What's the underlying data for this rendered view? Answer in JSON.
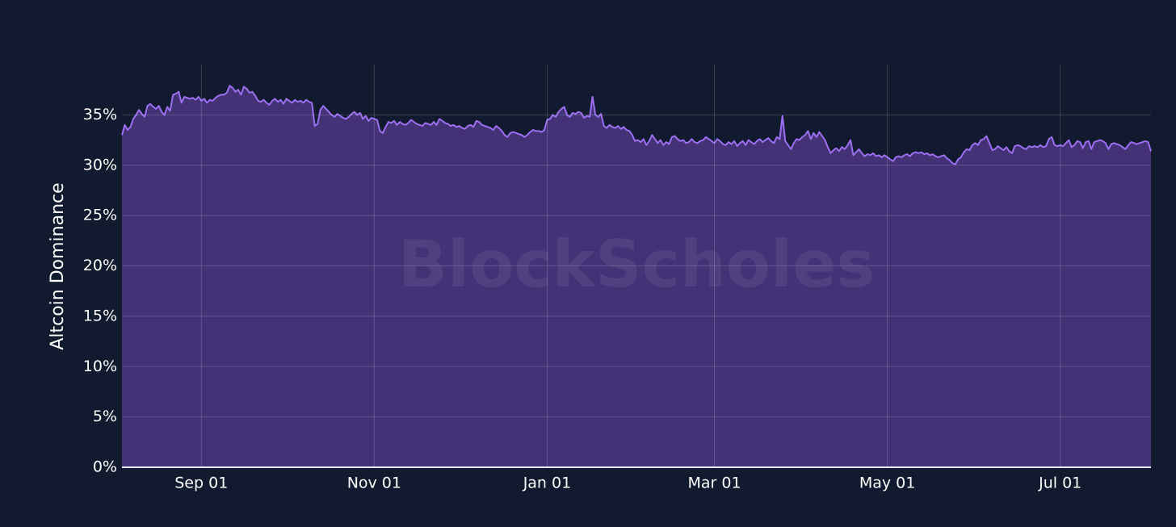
{
  "chart_data": {
    "type": "area",
    "ylabel": "Altcoin Dominance",
    "watermark": "BlockScholes",
    "color": "#9d6ff2",
    "fill_color": "#47347a",
    "ylim": [
      0,
      40
    ],
    "yticks": [
      {
        "value": 0,
        "label": "0%"
      },
      {
        "value": 5,
        "label": "5%"
      },
      {
        "value": 10,
        "label": "10%"
      },
      {
        "value": 15,
        "label": "15%"
      },
      {
        "value": 20,
        "label": "20%"
      },
      {
        "value": 25,
        "label": "25%"
      },
      {
        "value": 30,
        "label": "30%"
      },
      {
        "value": 35,
        "label": "35%"
      }
    ],
    "xticks": [
      "Sep 01",
      "Nov 01",
      "Jan 01",
      "Mar 01",
      "May 01",
      "Jul 01"
    ],
    "grid": true,
    "x": [
      "Aug 04",
      "Aug 05",
      "Aug 06",
      "Aug 07",
      "Aug 08",
      "Aug 09",
      "Aug 10",
      "Aug 11",
      "Aug 12",
      "Aug 13",
      "Aug 14",
      "Aug 15",
      "Aug 16",
      "Aug 17",
      "Aug 18",
      "Aug 19",
      "Aug 20",
      "Aug 21",
      "Aug 22",
      "Aug 23",
      "Aug 24",
      "Aug 25",
      "Aug 26",
      "Aug 27",
      "Aug 28",
      "Aug 29",
      "Aug 30",
      "Aug 31",
      "Sep 01",
      "Sep 02",
      "Sep 03",
      "Sep 04",
      "Sep 05",
      "Sep 06",
      "Sep 07",
      "Sep 08",
      "Sep 09",
      "Sep 10",
      "Sep 11",
      "Sep 12",
      "Sep 13",
      "Sep 14",
      "Sep 15",
      "Sep 16",
      "Sep 17",
      "Sep 18",
      "Sep 19",
      "Sep 20",
      "Sep 21",
      "Sep 22",
      "Sep 23",
      "Sep 24",
      "Sep 25",
      "Sep 26",
      "Sep 27",
      "Sep 28",
      "Sep 29",
      "Sep 30",
      "Oct 01",
      "Oct 02",
      "Oct 03",
      "Oct 04",
      "Oct 05",
      "Oct 06",
      "Oct 07",
      "Oct 08",
      "Oct 09",
      "Oct 10",
      "Oct 11",
      "Oct 12",
      "Oct 13",
      "Oct 14",
      "Oct 15",
      "Oct 16",
      "Oct 17",
      "Oct 18",
      "Oct 19",
      "Oct 20",
      "Oct 21",
      "Oct 22",
      "Oct 23",
      "Oct 24",
      "Oct 25",
      "Oct 26",
      "Oct 27",
      "Oct 28",
      "Oct 29",
      "Oct 30",
      "Oct 31",
      "Nov 01",
      "Nov 02",
      "Nov 03",
      "Nov 04",
      "Nov 05",
      "Nov 06",
      "Nov 07",
      "Nov 08",
      "Nov 09",
      "Nov 10",
      "Nov 11",
      "Nov 12",
      "Nov 13",
      "Nov 14",
      "Nov 15",
      "Nov 16",
      "Nov 17",
      "Nov 18",
      "Nov 19",
      "Nov 20",
      "Nov 21",
      "Nov 22",
      "Nov 23",
      "Nov 24",
      "Nov 25",
      "Nov 26",
      "Nov 27",
      "Nov 28",
      "Nov 29",
      "Nov 30",
      "Dec 01",
      "Dec 02",
      "Dec 03",
      "Dec 04",
      "Dec 05",
      "Dec 06",
      "Dec 07",
      "Dec 08",
      "Dec 09",
      "Dec 10",
      "Dec 11",
      "Dec 12",
      "Dec 13",
      "Dec 14",
      "Dec 15",
      "Dec 16",
      "Dec 17",
      "Dec 18",
      "Dec 19",
      "Dec 20",
      "Dec 21",
      "Dec 22",
      "Dec 23",
      "Dec 24",
      "Dec 25",
      "Dec 26",
      "Dec 27",
      "Dec 28",
      "Dec 29",
      "Dec 30",
      "Dec 31",
      "Jan 01",
      "Jan 02",
      "Jan 03",
      "Jan 04",
      "Jan 05",
      "Jan 06",
      "Jan 07",
      "Jan 08",
      "Jan 09",
      "Jan 10",
      "Jan 11",
      "Jan 12",
      "Jan 13",
      "Jan 14",
      "Jan 15",
      "Jan 16",
      "Jan 17",
      "Jan 18",
      "Jan 19",
      "Jan 20",
      "Jan 21",
      "Jan 22",
      "Jan 23",
      "Jan 24",
      "Jan 25",
      "Jan 26",
      "Jan 27",
      "Jan 28",
      "Jan 29",
      "Jan 30",
      "Jan 31",
      "Feb 01",
      "Feb 02",
      "Feb 03",
      "Feb 04",
      "Feb 05",
      "Feb 06",
      "Feb 07",
      "Feb 08",
      "Feb 09",
      "Feb 10",
      "Feb 11",
      "Feb 12",
      "Feb 13",
      "Feb 14",
      "Feb 15",
      "Feb 16",
      "Feb 17",
      "Feb 18",
      "Feb 19",
      "Feb 20",
      "Feb 21",
      "Feb 22",
      "Feb 23",
      "Feb 24",
      "Feb 25",
      "Feb 26",
      "Feb 27",
      "Feb 28",
      "Mar 01",
      "Mar 02",
      "Mar 03",
      "Mar 04",
      "Mar 05",
      "Mar 06",
      "Mar 07",
      "Mar 08",
      "Mar 09",
      "Mar 10",
      "Mar 11",
      "Mar 12",
      "Mar 13",
      "Mar 14",
      "Mar 15",
      "Mar 16",
      "Mar 17",
      "Mar 18",
      "Mar 19",
      "Mar 20",
      "Mar 21",
      "Mar 22",
      "Mar 23",
      "Mar 24",
      "Mar 25",
      "Mar 26",
      "Mar 27",
      "Mar 28",
      "Mar 29",
      "Mar 30",
      "Mar 31",
      "Apr 01",
      "Apr 02",
      "Apr 03",
      "Apr 04",
      "Apr 05",
      "Apr 06",
      "Apr 07",
      "Apr 08",
      "Apr 09",
      "Apr 10",
      "Apr 11",
      "Apr 12",
      "Apr 13",
      "Apr 14",
      "Apr 15",
      "Apr 16",
      "Apr 17",
      "Apr 18",
      "Apr 19",
      "Apr 20",
      "Apr 21",
      "Apr 22",
      "Apr 23",
      "Apr 24",
      "Apr 25",
      "Apr 26",
      "Apr 27",
      "Apr 28",
      "Apr 29",
      "Apr 30",
      "May 01",
      "May 02",
      "May 03",
      "May 04",
      "May 05",
      "May 06",
      "May 07",
      "May 08",
      "May 09",
      "May 10",
      "May 11",
      "May 12",
      "May 13",
      "May 14",
      "May 15",
      "May 16",
      "May 17",
      "May 18",
      "May 19",
      "May 20",
      "May 21",
      "May 22",
      "May 23",
      "May 24",
      "May 25",
      "May 26",
      "May 27",
      "May 28",
      "May 29",
      "May 30",
      "May 31",
      "Jun 01",
      "Jun 02",
      "Jun 03",
      "Jun 04",
      "Jun 05",
      "Jun 06",
      "Jun 07",
      "Jun 08",
      "Jun 09",
      "Jun 10",
      "Jun 11",
      "Jun 12",
      "Jun 13",
      "Jun 14",
      "Jun 15",
      "Jun 16",
      "Jun 17",
      "Jun 18",
      "Jun 19",
      "Jun 20",
      "Jun 21",
      "Jun 22",
      "Jun 23",
      "Jun 24",
      "Jun 25",
      "Jun 26",
      "Jun 27",
      "Jun 28",
      "Jun 29",
      "Jun 30",
      "Jul 01",
      "Jul 02",
      "Jul 03",
      "Jul 04",
      "Jul 05",
      "Jul 06",
      "Jul 07",
      "Jul 08",
      "Jul 09",
      "Jul 10",
      "Jul 11",
      "Jul 12",
      "Jul 13",
      "Jul 14",
      "Jul 15",
      "Jul 16",
      "Jul 17",
      "Jul 18",
      "Jul 19",
      "Jul 20",
      "Jul 21",
      "Jul 22",
      "Jul 23",
      "Jul 24",
      "Jul 25",
      "Jul 26",
      "Jul 27",
      "Jul 28",
      "Jul 29",
      "Jul 30",
      "Jul 31",
      "Aug 01",
      "Aug 02"
    ],
    "values": [
      33.0,
      34.0,
      33.5,
      33.8,
      34.6,
      35.0,
      35.5,
      35.1,
      34.8,
      35.9,
      36.1,
      35.8,
      35.6,
      35.9,
      35.3,
      35.0,
      35.8,
      35.4,
      37.0,
      37.1,
      37.3,
      36.2,
      36.8,
      36.7,
      36.6,
      36.7,
      36.5,
      36.8,
      36.4,
      36.6,
      36.2,
      36.5,
      36.4,
      36.7,
      36.9,
      37.0,
      37.0,
      37.2,
      37.9,
      37.7,
      37.3,
      37.5,
      37.0,
      37.8,
      37.6,
      37.2,
      37.3,
      36.9,
      36.4,
      36.3,
      36.5,
      36.2,
      36.0,
      36.4,
      36.6,
      36.3,
      36.5,
      36.1,
      36.6,
      36.4,
      36.2,
      36.5,
      36.3,
      36.4,
      36.2,
      36.5,
      36.3,
      36.2,
      33.9,
      34.1,
      35.5,
      35.9,
      35.6,
      35.3,
      35.0,
      34.8,
      35.1,
      34.9,
      34.7,
      34.6,
      34.8,
      35.1,
      35.3,
      35.0,
      35.2,
      34.6,
      34.9,
      34.4,
      34.7,
      34.6,
      34.5,
      33.4,
      33.2,
      33.8,
      34.3,
      34.2,
      34.4,
      34.0,
      34.3,
      34.1,
      34.0,
      34.2,
      34.5,
      34.3,
      34.1,
      34.0,
      33.9,
      34.2,
      34.1,
      34.0,
      34.3,
      34.0,
      34.6,
      34.4,
      34.2,
      34.1,
      33.9,
      34.0,
      33.8,
      33.9,
      33.7,
      33.6,
      33.9,
      34.0,
      33.8,
      34.4,
      34.3,
      34.0,
      33.9,
      33.8,
      33.7,
      33.5,
      33.9,
      33.7,
      33.4,
      33.0,
      32.8,
      33.2,
      33.3,
      33.2,
      33.1,
      33.0,
      32.8,
      33.0,
      33.3,
      33.5,
      33.4,
      33.4,
      33.3,
      33.5,
      34.5,
      34.6,
      35.0,
      34.8,
      35.3,
      35.6,
      35.8,
      35.0,
      34.8,
      35.2,
      35.1,
      35.3,
      35.2,
      34.7,
      34.9,
      34.8,
      36.8,
      35.0,
      34.8,
      35.1,
      33.9,
      33.7,
      34.0,
      33.8,
      33.7,
      33.9,
      33.6,
      33.8,
      33.5,
      33.4,
      33.0,
      32.4,
      32.5,
      32.3,
      32.6,
      32.0,
      32.4,
      33.0,
      32.6,
      32.2,
      32.5,
      32.0,
      32.3,
      32.1,
      32.8,
      32.9,
      32.6,
      32.4,
      32.5,
      32.2,
      32.3,
      32.6,
      32.3,
      32.2,
      32.4,
      32.5,
      32.8,
      32.6,
      32.4,
      32.2,
      32.6,
      32.4,
      32.1,
      32.0,
      32.3,
      32.1,
      32.4,
      31.9,
      32.2,
      32.4,
      32.0,
      32.5,
      32.3,
      32.1,
      32.4,
      32.6,
      32.3,
      32.5,
      32.7,
      32.4,
      32.2,
      32.8,
      32.6,
      34.9,
      32.4,
      32.0,
      31.6,
      32.2,
      32.6,
      32.5,
      32.8,
      33.0,
      33.4,
      32.6,
      33.2,
      32.8,
      33.3,
      32.9,
      32.5,
      31.8,
      31.2,
      31.5,
      31.7,
      31.4,
      31.8,
      31.6,
      32.0,
      32.5,
      31.0,
      31.3,
      31.6,
      31.2,
      30.9,
      31.1,
      31.0,
      31.2,
      30.9,
      31.0,
      30.8,
      31.0,
      30.8,
      30.6,
      30.4,
      30.8,
      30.9,
      30.8,
      31.0,
      31.1,
      30.9,
      31.2,
      31.3,
      31.2,
      31.3,
      31.1,
      31.2,
      31.0,
      31.1,
      30.9,
      30.8,
      30.9,
      31.0,
      30.7,
      30.5,
      30.2,
      30.1,
      30.6,
      30.8,
      31.3,
      31.6,
      31.5,
      32.0,
      32.2,
      32.0,
      32.5,
      32.6,
      32.9,
      32.2,
      31.5,
      31.6,
      31.9,
      31.7,
      31.5,
      31.8,
      31.4,
      31.2,
      31.9,
      32.0,
      31.9,
      31.7,
      31.6,
      31.9,
      31.8,
      31.9,
      31.8,
      32.0,
      31.8,
      31.9,
      32.6,
      32.8,
      32.0,
      31.9,
      32.0,
      31.9,
      32.2,
      32.5,
      31.8,
      32.0,
      32.4,
      32.3,
      31.7,
      32.3,
      32.4,
      31.6,
      32.3,
      32.4,
      32.5,
      32.4,
      32.2,
      31.6,
      32.1,
      32.2,
      32.1,
      32.0,
      31.8,
      31.6,
      32.0,
      32.3,
      32.2,
      32.1,
      32.2,
      32.3,
      32.4,
      32.3,
      31.4
    ]
  }
}
